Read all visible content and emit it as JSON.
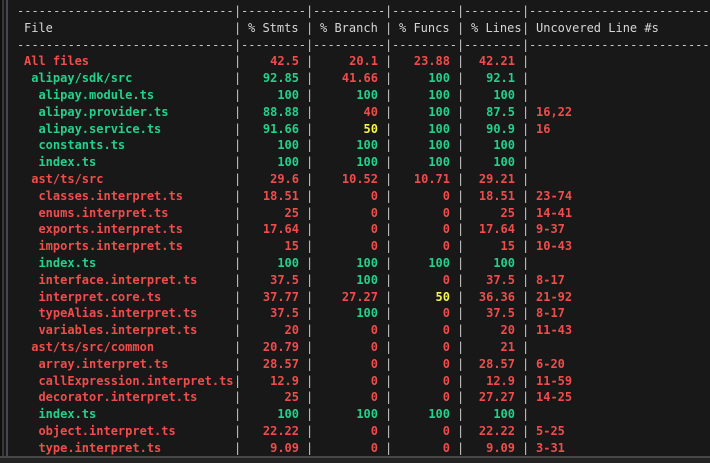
{
  "coverage": {
    "colors": {
      "red": "#f14c4c",
      "green": "#23d18b",
      "yellow": "#f5f543",
      "structure": "#c8c8c8",
      "header": "#d6d6d6",
      "background": "#181818"
    },
    "glyphs": {
      "pipe": "|",
      "dash": "-"
    },
    "headers": [
      "File",
      "% Stmts",
      "% Branch",
      "% Funcs",
      "% Lines",
      "Uncovered Line #s"
    ],
    "rows": [
      {
        "file": "All files",
        "indent": 0,
        "fileColor": "red",
        "values": [
          "42.5",
          "20.1",
          "23.88",
          "42.21"
        ],
        "valueColors": [
          "red",
          "red",
          "red",
          "red"
        ],
        "uncovered": ""
      },
      {
        "file": "alipay/sdk/src",
        "indent": 1,
        "fileColor": "green",
        "values": [
          "92.85",
          "41.66",
          "100",
          "92.1"
        ],
        "valueColors": [
          "green",
          "red",
          "green",
          "green"
        ],
        "uncovered": ""
      },
      {
        "file": "alipay.module.ts",
        "indent": 2,
        "fileColor": "green",
        "values": [
          "100",
          "100",
          "100",
          "100"
        ],
        "valueColors": [
          "green",
          "green",
          "green",
          "green"
        ],
        "uncovered": ""
      },
      {
        "file": "alipay.provider.ts",
        "indent": 2,
        "fileColor": "green",
        "values": [
          "88.88",
          "40",
          "100",
          "87.5"
        ],
        "valueColors": [
          "green",
          "red",
          "green",
          "green"
        ],
        "uncovered": "16,22"
      },
      {
        "file": "alipay.service.ts",
        "indent": 2,
        "fileColor": "green",
        "values": [
          "91.66",
          "50",
          "100",
          "90.9"
        ],
        "valueColors": [
          "green",
          "yellow",
          "green",
          "green"
        ],
        "uncovered": "16"
      },
      {
        "file": "constants.ts",
        "indent": 2,
        "fileColor": "green",
        "values": [
          "100",
          "100",
          "100",
          "100"
        ],
        "valueColors": [
          "green",
          "green",
          "green",
          "green"
        ],
        "uncovered": ""
      },
      {
        "file": "index.ts",
        "indent": 2,
        "fileColor": "green",
        "values": [
          "100",
          "100",
          "100",
          "100"
        ],
        "valueColors": [
          "green",
          "green",
          "green",
          "green"
        ],
        "uncovered": ""
      },
      {
        "file": "ast/ts/src",
        "indent": 1,
        "fileColor": "red",
        "values": [
          "29.6",
          "10.52",
          "10.71",
          "29.21"
        ],
        "valueColors": [
          "red",
          "red",
          "red",
          "red"
        ],
        "uncovered": ""
      },
      {
        "file": "classes.interpret.ts",
        "indent": 2,
        "fileColor": "red",
        "values": [
          "18.51",
          "0",
          "0",
          "18.51"
        ],
        "valueColors": [
          "red",
          "red",
          "red",
          "red"
        ],
        "uncovered": "23-74"
      },
      {
        "file": "enums.interpret.ts",
        "indent": 2,
        "fileColor": "red",
        "values": [
          "25",
          "0",
          "0",
          "25"
        ],
        "valueColors": [
          "red",
          "red",
          "red",
          "red"
        ],
        "uncovered": "14-41"
      },
      {
        "file": "exports.interpret.ts",
        "indent": 2,
        "fileColor": "red",
        "values": [
          "17.64",
          "0",
          "0",
          "17.64"
        ],
        "valueColors": [
          "red",
          "red",
          "red",
          "red"
        ],
        "uncovered": "9-37"
      },
      {
        "file": "imports.interpret.ts",
        "indent": 2,
        "fileColor": "red",
        "values": [
          "15",
          "0",
          "0",
          "15"
        ],
        "valueColors": [
          "red",
          "red",
          "red",
          "red"
        ],
        "uncovered": "10-43"
      },
      {
        "file": "index.ts",
        "indent": 2,
        "fileColor": "green",
        "values": [
          "100",
          "100",
          "100",
          "100"
        ],
        "valueColors": [
          "green",
          "green",
          "green",
          "green"
        ],
        "uncovered": ""
      },
      {
        "file": "interface.interpret.ts",
        "indent": 2,
        "fileColor": "red",
        "values": [
          "37.5",
          "100",
          "0",
          "37.5"
        ],
        "valueColors": [
          "red",
          "green",
          "red",
          "red"
        ],
        "uncovered": "8-17"
      },
      {
        "file": "interpret.core.ts",
        "indent": 2,
        "fileColor": "red",
        "values": [
          "37.77",
          "27.27",
          "50",
          "36.36"
        ],
        "valueColors": [
          "red",
          "red",
          "yellow",
          "red"
        ],
        "uncovered": "21-92"
      },
      {
        "file": "typeAlias.interpret.ts",
        "indent": 2,
        "fileColor": "red",
        "values": [
          "37.5",
          "100",
          "0",
          "37.5"
        ],
        "valueColors": [
          "red",
          "green",
          "red",
          "red"
        ],
        "uncovered": "8-17"
      },
      {
        "file": "variables.interpret.ts",
        "indent": 2,
        "fileColor": "red",
        "values": [
          "20",
          "0",
          "0",
          "20"
        ],
        "valueColors": [
          "red",
          "red",
          "red",
          "red"
        ],
        "uncovered": "11-43"
      },
      {
        "file": "ast/ts/src/common",
        "indent": 1,
        "fileColor": "red",
        "values": [
          "20.79",
          "0",
          "0",
          "21"
        ],
        "valueColors": [
          "red",
          "red",
          "red",
          "red"
        ],
        "uncovered": ""
      },
      {
        "file": "array.interpret.ts",
        "indent": 2,
        "fileColor": "red",
        "values": [
          "28.57",
          "0",
          "0",
          "28.57"
        ],
        "valueColors": [
          "red",
          "red",
          "red",
          "red"
        ],
        "uncovered": "6-20"
      },
      {
        "file": "callExpression.interpret.ts",
        "indent": 2,
        "fileColor": "red",
        "values": [
          "12.9",
          "0",
          "0",
          "12.9"
        ],
        "valueColors": [
          "red",
          "red",
          "red",
          "red"
        ],
        "uncovered": "11-59"
      },
      {
        "file": "decorator.interpret.ts",
        "indent": 2,
        "fileColor": "red",
        "values": [
          "25",
          "0",
          "0",
          "27.27"
        ],
        "valueColors": [
          "red",
          "red",
          "red",
          "red"
        ],
        "uncovered": "14-25"
      },
      {
        "file": "index.ts",
        "indent": 2,
        "fileColor": "green",
        "values": [
          "100",
          "100",
          "100",
          "100"
        ],
        "valueColors": [
          "green",
          "green",
          "green",
          "green"
        ],
        "uncovered": ""
      },
      {
        "file": "object.interpret.ts",
        "indent": 2,
        "fileColor": "red",
        "values": [
          "22.22",
          "0",
          "0",
          "22.22"
        ],
        "valueColors": [
          "red",
          "red",
          "red",
          "red"
        ],
        "uncovered": "5-25"
      },
      {
        "file": "type.interpret.ts",
        "indent": 2,
        "fileColor": "red",
        "values": [
          "9.09",
          "0",
          "0",
          "9.09"
        ],
        "valueColors": [
          "red",
          "red",
          "red",
          "red"
        ],
        "uncovered": "3-31"
      }
    ]
  }
}
